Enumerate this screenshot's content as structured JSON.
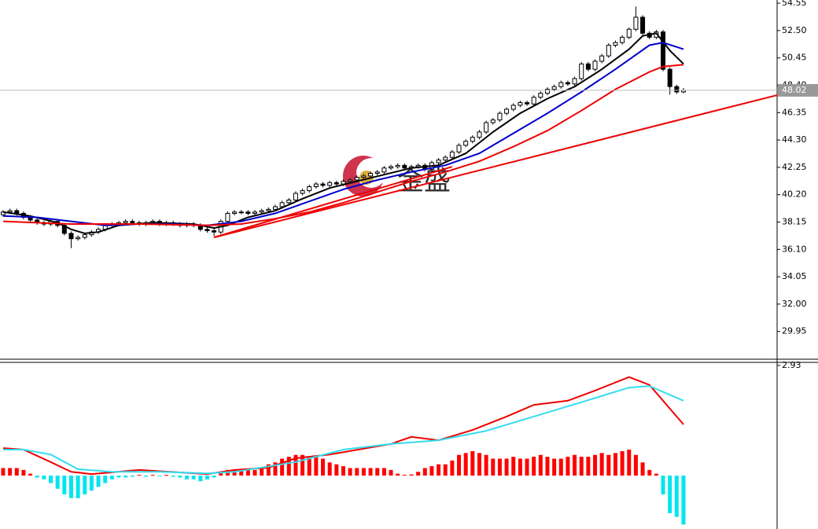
{
  "chart_data": [
    {
      "type": "candlestick",
      "xlim": [
        -0.46,
        113.76
      ],
      "ylim": [
        27.87,
        54.79
      ],
      "yticks": [
        54.55,
        {
          "value": 52.5,
          "label": "52.50"
        },
        50.45,
        {
          "value": 48.4,
          "label": "48.40"
        },
        46.35,
        {
          "value": 44.3,
          "label": "44.30"
        },
        42.25,
        {
          "value": 40.2,
          "label": "40.20"
        },
        38.15,
        {
          "value": 36.1,
          "label": "36.10"
        },
        34.05,
        {
          "value": 32.0,
          "label": "32.00"
        },
        29.95
      ],
      "up_color": "#ffffff",
      "down_color": "#000000",
      "open": [
        38.7,
        38.9,
        39.0,
        38.8,
        38.5,
        38.3,
        38.1,
        38.0,
        38.2,
        37.9,
        37.3,
        36.9,
        37.0,
        37.2,
        37.4,
        37.6,
        37.9,
        38.0,
        38.1,
        38.2,
        38.1,
        38.0,
        38.1,
        38.2,
        38.0,
        38.1,
        38.0,
        37.9,
        38.0,
        37.9,
        37.6,
        37.5,
        37.4,
        38.2,
        38.8,
        38.9,
        38.9,
        38.8,
        38.9,
        39.0,
        39.1,
        39.3,
        39.6,
        39.8,
        40.3,
        40.5,
        40.8,
        41.0,
        40.9,
        41.1,
        41.0,
        41.2,
        41.3,
        41.5,
        41.6,
        41.8,
        41.9,
        42.2,
        42.3,
        42.4,
        42.2,
        42.3,
        42.4,
        42.1,
        42.6,
        42.8,
        43.0,
        43.4,
        43.9,
        44.2,
        44.5,
        44.9,
        45.6,
        45.8,
        46.3,
        46.6,
        46.9,
        47.1,
        47.0,
        47.5,
        47.8,
        48.1,
        48.3,
        48.6,
        48.5,
        48.9,
        50.0,
        49.6,
        50.2,
        50.6,
        51.4,
        51.6,
        52.0,
        52.6,
        53.5,
        52.3,
        52.0,
        52.4,
        49.6,
        48.3,
        47.9
      ],
      "high": [
        39.05,
        39.15,
        39.15,
        38.95,
        38.65,
        38.45,
        38.25,
        38.35,
        38.35,
        38.05,
        37.45,
        37.15,
        37.35,
        37.55,
        37.75,
        38.05,
        38.15,
        38.25,
        38.35,
        38.35,
        38.25,
        38.25,
        38.35,
        38.35,
        38.25,
        38.25,
        38.15,
        38.15,
        38.15,
        38.05,
        37.75,
        37.65,
        38.35,
        38.95,
        39.05,
        39.05,
        39.05,
        39.05,
        39.15,
        39.25,
        39.45,
        39.75,
        39.95,
        40.45,
        40.65,
        40.95,
        41.15,
        41.15,
        41.25,
        41.25,
        41.35,
        41.45,
        41.65,
        41.75,
        41.95,
        42.05,
        42.35,
        42.45,
        42.55,
        42.55,
        42.45,
        42.55,
        42.55,
        42.75,
        42.95,
        43.15,
        43.55,
        44.05,
        44.35,
        44.65,
        45.05,
        45.75,
        45.95,
        46.45,
        46.75,
        47.05,
        47.25,
        47.25,
        47.65,
        47.95,
        48.25,
        48.45,
        48.75,
        48.75,
        49.05,
        50.15,
        50.15,
        50.35,
        50.75,
        51.55,
        51.75,
        52.15,
        52.75,
        54.3,
        53.65,
        52.45,
        52.55,
        52.55,
        49.75,
        48.45,
        48.2
      ],
      "low": [
        38.55,
        38.75,
        38.65,
        38.35,
        38.15,
        37.95,
        37.85,
        37.85,
        37.75,
        37.15,
        36.2,
        36.75,
        36.85,
        37.05,
        37.25,
        37.45,
        37.75,
        37.85,
        37.95,
        37.95,
        37.85,
        37.85,
        37.95,
        37.85,
        37.85,
        37.85,
        37.75,
        37.75,
        37.75,
        37.45,
        37.35,
        37.1,
        37.25,
        38.05,
        38.65,
        38.75,
        38.65,
        38.65,
        38.75,
        38.85,
        38.95,
        39.15,
        39.45,
        39.65,
        40.15,
        40.35,
        40.65,
        40.75,
        40.75,
        40.85,
        40.85,
        41.05,
        41.15,
        41.35,
        41.45,
        41.65,
        41.75,
        42.05,
        42.15,
        42.05,
        42.05,
        42.15,
        41.95,
        41.95,
        42.45,
        42.65,
        42.85,
        43.25,
        43.75,
        44.05,
        44.35,
        44.75,
        45.45,
        45.65,
        46.15,
        46.45,
        46.75,
        46.85,
        46.85,
        47.35,
        47.65,
        47.95,
        48.15,
        48.35,
        48.35,
        48.75,
        49.45,
        49.45,
        50.05,
        50.45,
        51.25,
        51.45,
        51.85,
        52.45,
        52.15,
        51.85,
        51.85,
        49.45,
        47.7,
        47.75,
        47.8
      ],
      "close": [
        38.9,
        39.0,
        38.8,
        38.5,
        38.3,
        38.1,
        38.0,
        38.2,
        37.9,
        37.3,
        36.9,
        37.0,
        37.2,
        37.4,
        37.6,
        37.9,
        38.0,
        38.1,
        38.2,
        38.1,
        38.0,
        38.1,
        38.2,
        38.0,
        38.1,
        38.0,
        37.9,
        38.0,
        37.9,
        37.6,
        37.5,
        37.4,
        38.2,
        38.8,
        38.9,
        38.9,
        38.8,
        38.9,
        39.0,
        39.1,
        39.3,
        39.6,
        39.8,
        40.3,
        40.5,
        40.8,
        41.0,
        40.9,
        41.1,
        41.0,
        41.2,
        41.3,
        41.5,
        41.6,
        41.8,
        41.9,
        42.2,
        42.3,
        42.4,
        42.2,
        42.3,
        42.4,
        42.1,
        42.6,
        42.8,
        43.0,
        43.4,
        43.9,
        44.2,
        44.5,
        44.9,
        45.6,
        45.8,
        46.3,
        46.6,
        46.9,
        47.1,
        47.0,
        47.5,
        47.8,
        48.1,
        48.3,
        48.6,
        48.5,
        48.9,
        50.0,
        49.6,
        50.2,
        50.6,
        51.4,
        51.6,
        52.0,
        52.6,
        53.5,
        52.3,
        52.0,
        52.4,
        49.6,
        48.3,
        47.9,
        48.02
      ],
      "series": [
        {
          "color": "#000000",
          "x": [
            0,
            4,
            8,
            10,
            12,
            14,
            17,
            22,
            28,
            31,
            33,
            36,
            40,
            44,
            48,
            52,
            56,
            60,
            64,
            68,
            72,
            76,
            80,
            84,
            88,
            92,
            94,
            96,
            98,
            100
          ],
          "values": [
            38.9,
            38.6,
            38.1,
            37.6,
            37.3,
            37.4,
            37.9,
            38.1,
            38.0,
            37.7,
            37.9,
            38.5,
            39.0,
            39.9,
            40.7,
            41.2,
            41.7,
            42.2,
            42.4,
            43.3,
            44.9,
            46.3,
            47.4,
            48.3,
            49.6,
            51.1,
            52.1,
            52.3,
            51.0,
            50.0
          ]
        },
        {
          "color": "#0000cc",
          "x": [
            0,
            5,
            10,
            15,
            20,
            25,
            30,
            35,
            40,
            45,
            50,
            55,
            60,
            65,
            70,
            75,
            80,
            85,
            90,
            95,
            97,
            100
          ],
          "values": [
            38.6,
            38.5,
            38.2,
            37.9,
            38.0,
            38.0,
            37.9,
            38.2,
            38.8,
            39.7,
            40.6,
            41.3,
            41.9,
            42.4,
            43.3,
            44.8,
            46.3,
            47.9,
            49.6,
            51.4,
            51.6,
            51.1
          ]
        },
        {
          "color": "#ee0000",
          "x": [
            0,
            10,
            20,
            30,
            35,
            40,
            45,
            50,
            55,
            60,
            65,
            70,
            75,
            80,
            85,
            90,
            95,
            97,
            100
          ],
          "values": [
            38.2,
            38.0,
            38.0,
            37.9,
            38.0,
            38.4,
            38.9,
            39.6,
            40.4,
            41.2,
            41.9,
            42.7,
            43.8,
            45.0,
            46.5,
            48.1,
            49.4,
            49.8,
            49.95
          ]
        }
      ],
      "trendlines": [
        {
          "color": "#ee0000",
          "x": [
            31,
            113.76
          ],
          "values": [
            37.0,
            47.66
          ]
        },
        {
          "color": "#ee0000",
          "x": [
            31,
            66
          ],
          "values": [
            37.0,
            42.3
          ]
        }
      ],
      "last_price": 48.02,
      "watermark": "金盛"
    },
    {
      "type": "macd",
      "xlim": [
        -0.46,
        113.76
      ],
      "ylim": [
        -1.42,
        3.01
      ],
      "yticks": [
        2.93
      ],
      "pos_color": "#ff0000",
      "neg_color": "#00e5ee",
      "values": [
        0.2,
        0.2,
        0.2,
        0.15,
        0.05,
        -0.05,
        -0.1,
        -0.2,
        -0.35,
        -0.5,
        -0.6,
        -0.6,
        -0.5,
        -0.4,
        -0.3,
        -0.2,
        -0.1,
        -0.05,
        -0.05,
        -0.03,
        0.02,
        -0.03,
        0.02,
        -0.02,
        0.02,
        -0.03,
        -0.05,
        -0.1,
        -0.1,
        -0.15,
        -0.1,
        -0.05,
        0.1,
        0.15,
        0.15,
        0.15,
        0.15,
        0.15,
        0.2,
        0.3,
        0.35,
        0.45,
        0.5,
        0.55,
        0.55,
        0.5,
        0.5,
        0.45,
        0.35,
        0.3,
        0.25,
        0.2,
        0.2,
        0.2,
        0.2,
        0.2,
        0.2,
        0.15,
        0.05,
        0.02,
        0.03,
        0.1,
        0.2,
        0.25,
        0.3,
        0.3,
        0.4,
        0.55,
        0.6,
        0.65,
        0.6,
        0.55,
        0.45,
        0.45,
        0.45,
        0.5,
        0.45,
        0.45,
        0.5,
        0.55,
        0.5,
        0.45,
        0.45,
        0.5,
        0.55,
        0.5,
        0.5,
        0.55,
        0.6,
        0.55,
        0.6,
        0.65,
        0.69,
        0.55,
        0.35,
        0.15,
        0.05,
        -0.5,
        -1.0,
        -1.1,
        -1.3
      ],
      "series": [
        {
          "color": "#ee0000",
          "x": [
            0,
            3,
            7,
            10,
            13,
            20,
            30,
            34,
            39,
            43,
            48,
            57,
            60,
            64,
            69,
            74,
            78,
            83,
            87,
            92,
            95,
            100
          ],
          "values": [
            0.73,
            0.69,
            0.36,
            0.1,
            0.04,
            0.15,
            0.04,
            0.15,
            0.21,
            0.46,
            0.56,
            0.84,
            1.03,
            0.94,
            1.21,
            1.57,
            1.88,
            1.99,
            2.26,
            2.62,
            2.41,
            1.36
          ]
        },
        {
          "color": "#33ddee",
          "x": [
            0,
            3,
            7,
            11,
            16,
            23,
            30,
            34,
            43,
            50,
            57,
            64,
            71,
            78,
            85,
            92,
            95,
            100
          ],
          "values": [
            0.69,
            0.69,
            0.56,
            0.17,
            0.1,
            0.1,
            0.06,
            0.1,
            0.36,
            0.69,
            0.84,
            0.94,
            1.19,
            1.57,
            1.95,
            2.34,
            2.38,
            1.99
          ]
        }
      ]
    }
  ]
}
